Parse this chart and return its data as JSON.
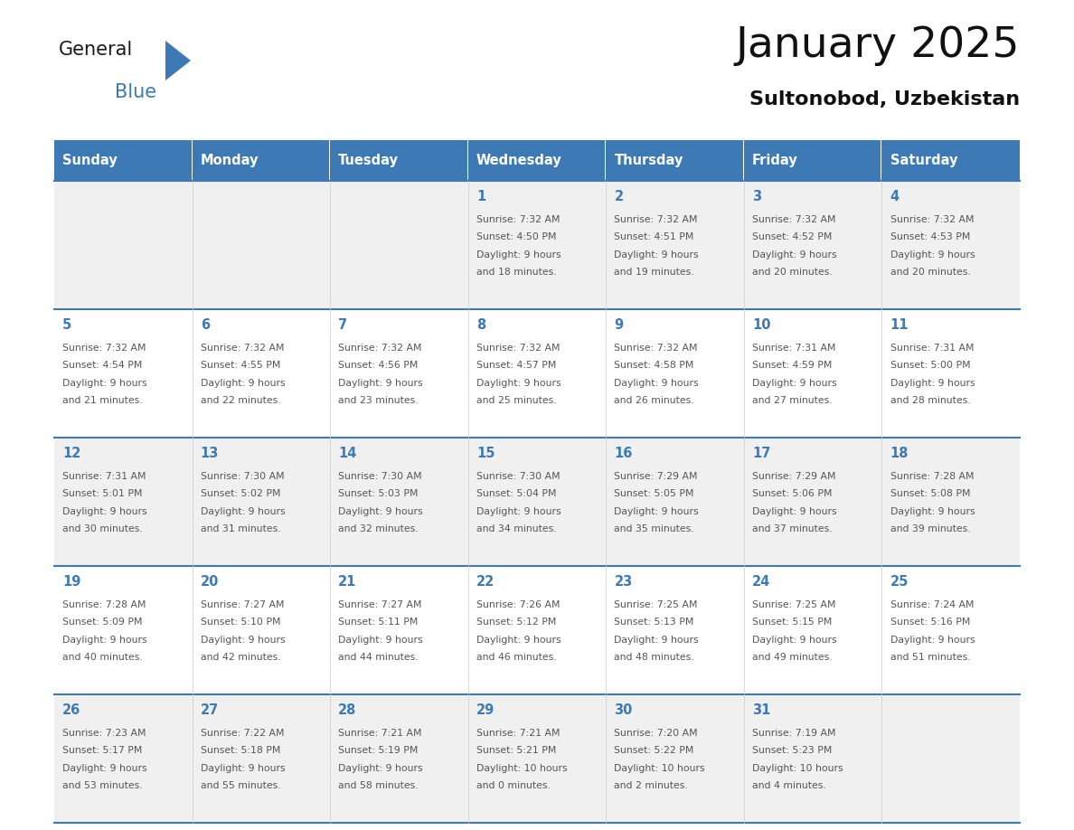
{
  "title": "January 2025",
  "subtitle": "Sultonobod, Uzbekistan",
  "header_bg_color": "#3d7ab5",
  "header_text_color": "#ffffff",
  "cell_bg_even": "#f0f0f0",
  "cell_bg_odd": "#ffffff",
  "day_number_color": "#3d7ab5",
  "info_text_color": "#555555",
  "border_color": "#3d7ab5",
  "days_of_week": [
    "Sunday",
    "Monday",
    "Tuesday",
    "Wednesday",
    "Thursday",
    "Friday",
    "Saturday"
  ],
  "weeks": [
    [
      {
        "day": null,
        "info": null
      },
      {
        "day": null,
        "info": null
      },
      {
        "day": null,
        "info": null
      },
      {
        "day": 1,
        "info": "Sunrise: 7:32 AM\nSunset: 4:50 PM\nDaylight: 9 hours\nand 18 minutes."
      },
      {
        "day": 2,
        "info": "Sunrise: 7:32 AM\nSunset: 4:51 PM\nDaylight: 9 hours\nand 19 minutes."
      },
      {
        "day": 3,
        "info": "Sunrise: 7:32 AM\nSunset: 4:52 PM\nDaylight: 9 hours\nand 20 minutes."
      },
      {
        "day": 4,
        "info": "Sunrise: 7:32 AM\nSunset: 4:53 PM\nDaylight: 9 hours\nand 20 minutes."
      }
    ],
    [
      {
        "day": 5,
        "info": "Sunrise: 7:32 AM\nSunset: 4:54 PM\nDaylight: 9 hours\nand 21 minutes."
      },
      {
        "day": 6,
        "info": "Sunrise: 7:32 AM\nSunset: 4:55 PM\nDaylight: 9 hours\nand 22 minutes."
      },
      {
        "day": 7,
        "info": "Sunrise: 7:32 AM\nSunset: 4:56 PM\nDaylight: 9 hours\nand 23 minutes."
      },
      {
        "day": 8,
        "info": "Sunrise: 7:32 AM\nSunset: 4:57 PM\nDaylight: 9 hours\nand 25 minutes."
      },
      {
        "day": 9,
        "info": "Sunrise: 7:32 AM\nSunset: 4:58 PM\nDaylight: 9 hours\nand 26 minutes."
      },
      {
        "day": 10,
        "info": "Sunrise: 7:31 AM\nSunset: 4:59 PM\nDaylight: 9 hours\nand 27 minutes."
      },
      {
        "day": 11,
        "info": "Sunrise: 7:31 AM\nSunset: 5:00 PM\nDaylight: 9 hours\nand 28 minutes."
      }
    ],
    [
      {
        "day": 12,
        "info": "Sunrise: 7:31 AM\nSunset: 5:01 PM\nDaylight: 9 hours\nand 30 minutes."
      },
      {
        "day": 13,
        "info": "Sunrise: 7:30 AM\nSunset: 5:02 PM\nDaylight: 9 hours\nand 31 minutes."
      },
      {
        "day": 14,
        "info": "Sunrise: 7:30 AM\nSunset: 5:03 PM\nDaylight: 9 hours\nand 32 minutes."
      },
      {
        "day": 15,
        "info": "Sunrise: 7:30 AM\nSunset: 5:04 PM\nDaylight: 9 hours\nand 34 minutes."
      },
      {
        "day": 16,
        "info": "Sunrise: 7:29 AM\nSunset: 5:05 PM\nDaylight: 9 hours\nand 35 minutes."
      },
      {
        "day": 17,
        "info": "Sunrise: 7:29 AM\nSunset: 5:06 PM\nDaylight: 9 hours\nand 37 minutes."
      },
      {
        "day": 18,
        "info": "Sunrise: 7:28 AM\nSunset: 5:08 PM\nDaylight: 9 hours\nand 39 minutes."
      }
    ],
    [
      {
        "day": 19,
        "info": "Sunrise: 7:28 AM\nSunset: 5:09 PM\nDaylight: 9 hours\nand 40 minutes."
      },
      {
        "day": 20,
        "info": "Sunrise: 7:27 AM\nSunset: 5:10 PM\nDaylight: 9 hours\nand 42 minutes."
      },
      {
        "day": 21,
        "info": "Sunrise: 7:27 AM\nSunset: 5:11 PM\nDaylight: 9 hours\nand 44 minutes."
      },
      {
        "day": 22,
        "info": "Sunrise: 7:26 AM\nSunset: 5:12 PM\nDaylight: 9 hours\nand 46 minutes."
      },
      {
        "day": 23,
        "info": "Sunrise: 7:25 AM\nSunset: 5:13 PM\nDaylight: 9 hours\nand 48 minutes."
      },
      {
        "day": 24,
        "info": "Sunrise: 7:25 AM\nSunset: 5:15 PM\nDaylight: 9 hours\nand 49 minutes."
      },
      {
        "day": 25,
        "info": "Sunrise: 7:24 AM\nSunset: 5:16 PM\nDaylight: 9 hours\nand 51 minutes."
      }
    ],
    [
      {
        "day": 26,
        "info": "Sunrise: 7:23 AM\nSunset: 5:17 PM\nDaylight: 9 hours\nand 53 minutes."
      },
      {
        "day": 27,
        "info": "Sunrise: 7:22 AM\nSunset: 5:18 PM\nDaylight: 9 hours\nand 55 minutes."
      },
      {
        "day": 28,
        "info": "Sunrise: 7:21 AM\nSunset: 5:19 PM\nDaylight: 9 hours\nand 58 minutes."
      },
      {
        "day": 29,
        "info": "Sunrise: 7:21 AM\nSunset: 5:21 PM\nDaylight: 10 hours\nand 0 minutes."
      },
      {
        "day": 30,
        "info": "Sunrise: 7:20 AM\nSunset: 5:22 PM\nDaylight: 10 hours\nand 2 minutes."
      },
      {
        "day": 31,
        "info": "Sunrise: 7:19 AM\nSunset: 5:23 PM\nDaylight: 10 hours\nand 4 minutes."
      },
      {
        "day": null,
        "info": null
      }
    ]
  ],
  "fig_width": 11.88,
  "fig_height": 9.18,
  "dpi": 100
}
